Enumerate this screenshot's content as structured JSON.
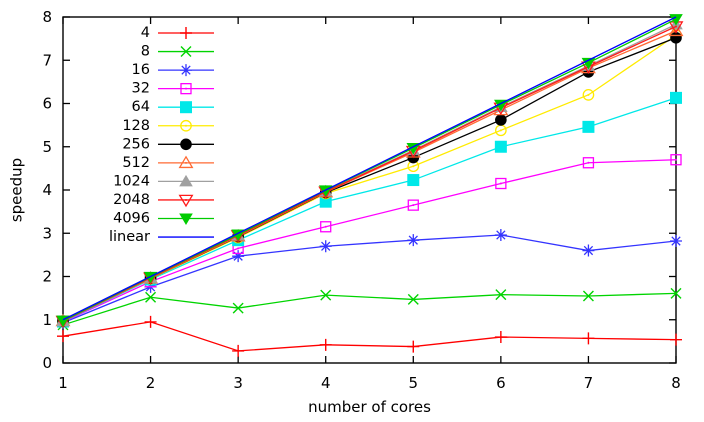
{
  "chart_data": {
    "type": "line",
    "title": "",
    "xlabel": "number of cores",
    "ylabel": "speedup",
    "xlim": [
      1,
      8
    ],
    "ylim": [
      0,
      8
    ],
    "xticks": [
      1,
      2,
      3,
      4,
      5,
      6,
      7,
      8
    ],
    "yticks": [
      0,
      1,
      2,
      3,
      4,
      5,
      6,
      7,
      8
    ],
    "grid": false,
    "legend_position": "top-left-inside",
    "x": [
      1,
      2,
      3,
      4,
      5,
      6,
      7,
      8
    ],
    "series": [
      {
        "name": "4",
        "color": "#ff0000",
        "marker": "plus",
        "values": [
          0.62,
          0.95,
          0.28,
          0.42,
          0.38,
          0.6,
          0.57,
          0.54
        ]
      },
      {
        "name": "8",
        "color": "#00d400",
        "marker": "cross",
        "values": [
          0.88,
          1.52,
          1.27,
          1.57,
          1.47,
          1.58,
          1.55,
          1.61
        ]
      },
      {
        "name": "16",
        "color": "#3434ff",
        "marker": "asterisk",
        "values": [
          0.93,
          1.76,
          2.47,
          2.7,
          2.84,
          2.96,
          2.6,
          2.82
        ]
      },
      {
        "name": "32",
        "color": "#ff00ff",
        "marker": "square-open",
        "values": [
          0.95,
          1.88,
          2.65,
          3.15,
          3.65,
          4.15,
          4.63,
          4.7
        ]
      },
      {
        "name": "64",
        "color": "#00e8e8",
        "marker": "square-filled",
        "values": [
          0.96,
          1.93,
          2.84,
          3.73,
          4.23,
          5.0,
          5.46,
          6.13
        ]
      },
      {
        "name": "128",
        "color": "#ffeb00",
        "marker": "circle-open",
        "values": [
          0.97,
          1.95,
          2.9,
          3.92,
          4.55,
          5.38,
          6.2,
          7.58
        ]
      },
      {
        "name": "256",
        "color": "#000000",
        "marker": "circle-filled",
        "values": [
          0.97,
          1.96,
          2.92,
          3.94,
          4.75,
          5.62,
          6.73,
          7.52
        ]
      },
      {
        "name": "512",
        "color": "#ff6a33",
        "marker": "triangle-up-open",
        "values": [
          0.97,
          1.96,
          2.93,
          3.95,
          4.87,
          5.85,
          6.82,
          7.68
        ]
      },
      {
        "name": "1024",
        "color": "#a0a0a0",
        "marker": "triangle-up-filled",
        "values": [
          0.97,
          1.97,
          2.95,
          3.97,
          4.92,
          5.92,
          6.87,
          7.83
        ]
      },
      {
        "name": "2048",
        "color": "#ff1a1a",
        "marker": "triangle-down-open",
        "values": [
          0.97,
          1.97,
          2.95,
          3.96,
          4.9,
          5.9,
          6.85,
          7.78
        ]
      },
      {
        "name": "4096",
        "color": "#00cc00",
        "marker": "triangle-down-filled",
        "values": [
          0.98,
          1.99,
          2.97,
          3.99,
          4.97,
          5.97,
          6.94,
          7.95
        ]
      },
      {
        "name": "linear",
        "color": "#0000ff",
        "marker": "none",
        "values": [
          1,
          2,
          3,
          4,
          5,
          6,
          7,
          8
        ]
      }
    ]
  }
}
